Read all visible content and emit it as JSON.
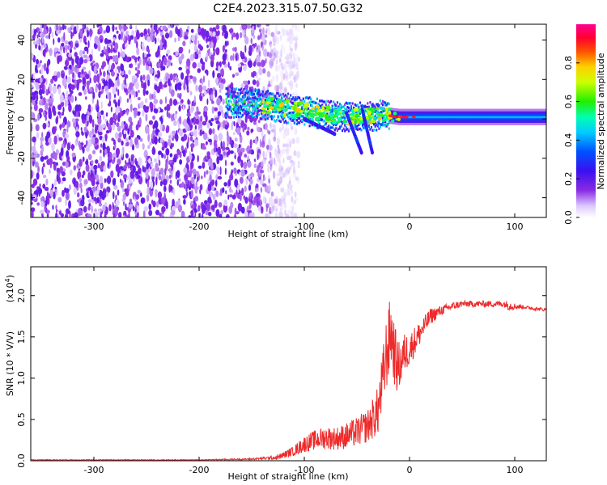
{
  "title": "C2E4.2023.315.07.50.G32",
  "chart_data": [
    {
      "type": "heatmap",
      "xlabel": "Height of straight line (km)",
      "ylabel": "Frequency (Hz)",
      "xlim": [
        -360,
        130
      ],
      "ylim": [
        -50,
        48
      ],
      "x_ticks": [
        -300,
        -200,
        -100,
        0,
        100
      ],
      "y_ticks": [
        -40,
        -20,
        0,
        20,
        40
      ],
      "colorbar": {
        "label": "Normalized spectral amplitude",
        "range": [
          0,
          1
        ],
        "ticks": [
          0.0,
          0.2,
          0.4,
          0.6,
          0.8
        ],
        "colormap": "rainbow: white → violet → blue → cyan → green → yellow → red → magenta"
      },
      "features": {
        "noise_region_x": [
          -360,
          -125
        ],
        "signal_band_center_hz": [
          [
            -175,
            8
          ],
          [
            -150,
            8
          ],
          [
            -125,
            6
          ],
          [
            -100,
            4
          ],
          [
            -80,
            2
          ],
          [
            -60,
            1
          ],
          [
            -40,
            1
          ],
          [
            -25,
            2
          ],
          [
            -10,
            1
          ],
          [
            0,
            1
          ],
          [
            50,
            1
          ],
          [
            100,
            1
          ],
          [
            130,
            1
          ]
        ],
        "lower_streaks": [
          {
            "x_start": -100,
            "y_start": 0,
            "x_end": -70,
            "y_end": -8
          },
          {
            "x_start": -60,
            "y_start": 3,
            "x_end": -45,
            "y_end": -18
          },
          {
            "x_start": -45,
            "y_start": 5,
            "x_end": -35,
            "y_end": -18
          }
        ]
      }
    },
    {
      "type": "line",
      "xlabel": "Height of straight line (km)",
      "ylabel": "SNR (10 * V/V)",
      "y_scale_label": "(x10",
      "y_scale_exp": "4",
      "y_scale_close": ")",
      "xlim": [
        -360,
        130
      ],
      "ylim": [
        0,
        2.35
      ],
      "x_ticks": [
        -300,
        -200,
        -100,
        0,
        100
      ],
      "y_ticks": [
        0.0,
        0.5,
        1.0,
        1.5,
        2.0
      ],
      "y_tick_labels": [
        "0.0",
        "0.5",
        "1.0",
        "1.5",
        "2.0"
      ],
      "series": [
        {
          "color": "#ee2a2a",
          "x": [
            -360,
            -300,
            -250,
            -200,
            -150,
            -125,
            -110,
            -100,
            -90,
            -80,
            -70,
            -60,
            -50,
            -40,
            -30,
            -25,
            -22,
            -20,
            -18,
            -15,
            -12,
            -10,
            -8,
            -5,
            0,
            5,
            10,
            15,
            20,
            30,
            40,
            50,
            60,
            70,
            80,
            90,
            95,
            100,
            110,
            120,
            130
          ],
          "y": [
            0.01,
            0.01,
            0.01,
            0.01,
            0.02,
            0.04,
            0.12,
            0.2,
            0.25,
            0.28,
            0.27,
            0.3,
            0.35,
            0.42,
            0.6,
            1.0,
            1.3,
            1.4,
            1.6,
            1.35,
            1.15,
            1.15,
            1.2,
            1.3,
            1.35,
            1.45,
            1.55,
            1.65,
            1.75,
            1.82,
            1.87,
            1.9,
            1.9,
            1.9,
            1.9,
            1.9,
            1.88,
            1.87,
            1.86,
            1.84,
            1.83
          ],
          "noise_amplitude": [
            0.005,
            0.005,
            0.005,
            0.005,
            0.01,
            0.03,
            0.06,
            0.1,
            0.12,
            0.14,
            0.14,
            0.16,
            0.18,
            0.2,
            0.3,
            0.4,
            0.45,
            0.45,
            0.45,
            0.4,
            0.35,
            0.3,
            0.28,
            0.25,
            0.2,
            0.18,
            0.15,
            0.12,
            0.1,
            0.06,
            0.05,
            0.04,
            0.04,
            0.04,
            0.04,
            0.04,
            0.06,
            0.04,
            0.02,
            0.02,
            0.02
          ]
        }
      ]
    }
  ],
  "colors": {
    "axis": "#000000",
    "line": "#ee2a2a"
  }
}
